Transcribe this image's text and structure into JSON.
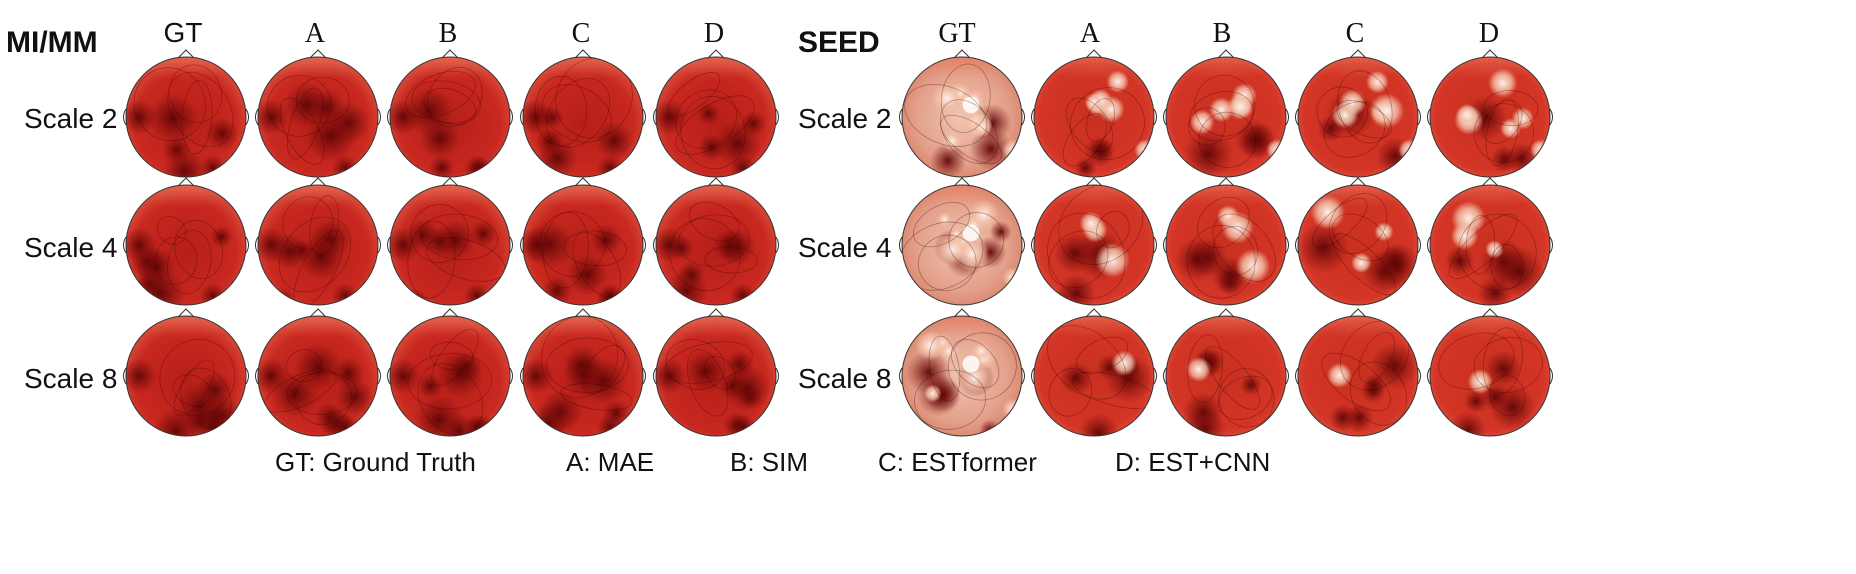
{
  "panels": [
    {
      "title": "MI/MM",
      "columns": [
        "GT",
        "A",
        "B",
        "C",
        "D"
      ],
      "rows": [
        "Scale 2",
        "Scale 4",
        "Scale 8"
      ],
      "topomaps": [
        [
          "gt",
          "a",
          "b",
          "c",
          "d"
        ],
        [
          "gt",
          "a",
          "b",
          "c",
          "d"
        ],
        [
          "gt",
          "a",
          "b",
          "c",
          "d"
        ]
      ]
    },
    {
      "title": "SEED",
      "columns": [
        "GT",
        "A",
        "B",
        "C",
        "D"
      ],
      "rows": [
        "Scale 2",
        "Scale 4",
        "Scale 8"
      ],
      "topomaps": [
        [
          "gt",
          "a",
          "b",
          "c",
          "d"
        ],
        [
          "gt",
          "a",
          "b",
          "c",
          "d"
        ],
        [
          "gt",
          "a",
          "b",
          "c",
          "d"
        ]
      ]
    }
  ],
  "legend": [
    "GT: Ground Truth",
    "A: MAE",
    "B: SIM",
    "C: ESTformer",
    "D: EST+CNN"
  ],
  "colors": {
    "map_base_left": "#c8281f",
    "map_base_right": "#d33526",
    "map_dark": "#7a0a0a",
    "map_light": "#f3b49a",
    "map_highlight": "#fbe9e0",
    "outline": "#333333"
  }
}
